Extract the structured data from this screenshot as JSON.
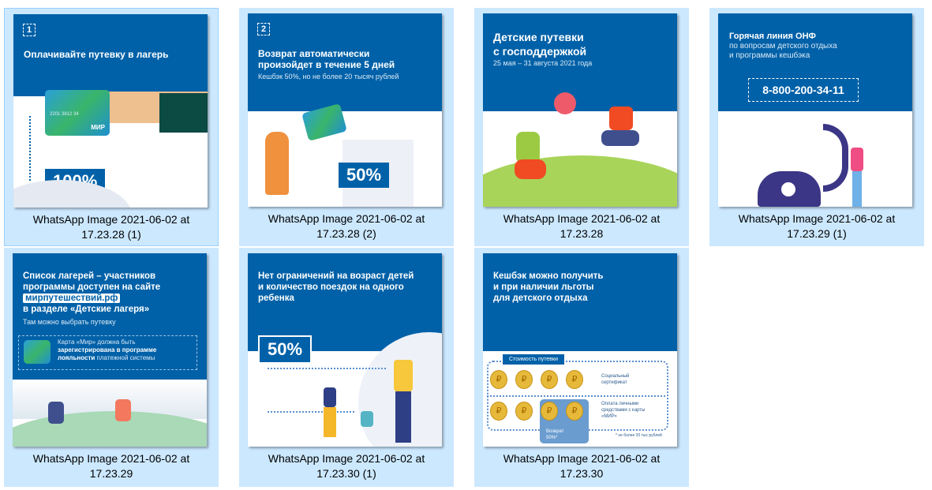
{
  "files": [
    {
      "name_line1": "WhatsApp Image 2021-06-02 at",
      "name_line2": "17.23.28 (1)",
      "selected": true,
      "thumb": {
        "step": "1",
        "title": "Оплачивайте путевку в лагерь",
        "percent": "100%",
        "card_brand": "МИР",
        "card_number": "2201 3812 34"
      }
    },
    {
      "name_line1": "WhatsApp Image 2021-06-02 at",
      "name_line2": "17.23.28 (2)",
      "thumb": {
        "step": "2",
        "title1": "Возврат автоматически",
        "title2": "произойдет в течение 5 дней",
        "subtitle": "Кешбэк 50%, но не более 20 тысяч рублей",
        "percent": "50%"
      }
    },
    {
      "name_line1": "WhatsApp Image 2021-06-02 at",
      "name_line2": "17.23.28",
      "thumb": {
        "title1": "Детские путевки",
        "title2": "с господдержкой",
        "subtitle": "25 мая – 31 августа 2021 года"
      }
    },
    {
      "name_line1": "WhatsApp Image 2021-06-02 at",
      "name_line2": "17.23.29 (1)",
      "thumb": {
        "title": "Горячая линия ОНФ",
        "subtitle1": "по вопросам детского отдыха",
        "subtitle2": "и программы кешбэка",
        "phone": "8-800-200-34-11"
      }
    },
    {
      "name_line1": "WhatsApp Image 2021-06-02 at",
      "name_line2": "17.23.29",
      "thumb": {
        "title1": "Список лагерей – участников",
        "title2": "программы доступен на сайте",
        "site": "мирпутешествий.рф",
        "title3": "в разделе «Детские лагеря»",
        "subtitle": "Там можно выбрать путевку",
        "note1": "Карта «Мир» должна быть",
        "note2": "зарегистрирована в программе",
        "note3a": "лояльности",
        "note3b": " платежной системы"
      }
    },
    {
      "name_line1": "WhatsApp Image 2021-06-02 at",
      "name_line2": "17.23.30 (1)",
      "thumb": {
        "title1": "Нет ограничений на возраст детей",
        "title2": "и количество поездок на одного",
        "title3": "ребенка",
        "percent": "50%"
      }
    },
    {
      "name_line1": "WhatsApp Image 2021-06-02 at",
      "name_line2": "17.23.30",
      "thumb": {
        "title1": "Кешбэк можно получить",
        "title2": "и при наличии льготы",
        "title3": "для детского отдыха",
        "cost_label": "Стоимость путевки",
        "row1_label1": "Социальный",
        "row1_label2": "сертификат",
        "row2_label1": "Оплата личными",
        "row2_label2": "средствами с карты",
        "row2_label3": "«МИР»",
        "refund1": "Возврат",
        "refund2": "50%*",
        "footnote": "* не более 20 тыс рублей",
        "coin": "₽"
      }
    }
  ],
  "colors": {
    "tile_bg": "#cce8ff",
    "tile_border": "#99d1ff",
    "brand_blue": "#0061a8"
  }
}
